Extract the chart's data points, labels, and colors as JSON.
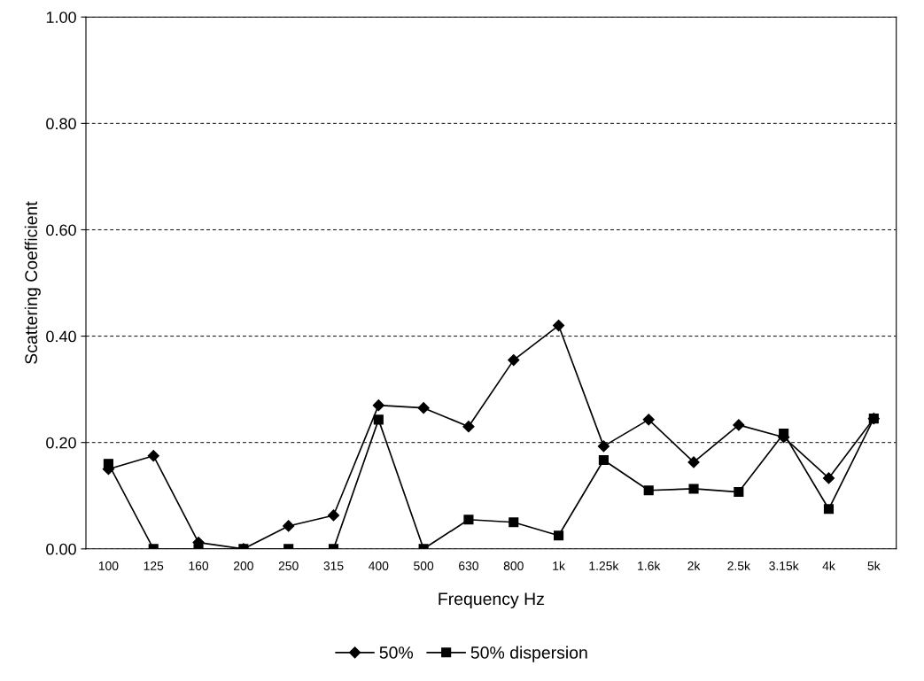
{
  "chart_data": {
    "type": "line",
    "xlabel": "Frequency Hz",
    "ylabel": "Scattering Coefficient",
    "categories": [
      "100",
      "125",
      "160",
      "200",
      "250",
      "315",
      "400",
      "500",
      "630",
      "800",
      "1k",
      "1.25k",
      "1.6k",
      "2k",
      "2.5k",
      "3.15k",
      "4k",
      "5k"
    ],
    "series": [
      {
        "name": "50%",
        "color": "#000000",
        "marker": "diamond",
        "values": [
          0.15,
          0.175,
          0.012,
          0.0,
          0.043,
          0.063,
          0.27,
          0.265,
          0.23,
          0.355,
          0.42,
          0.193,
          0.243,
          0.163,
          0.233,
          0.21,
          0.133,
          0.245
        ]
      },
      {
        "name": "50% dispersion",
        "color": "#000000",
        "marker": "square",
        "values": [
          0.16,
          0.0,
          0.0,
          0.0,
          0.0,
          0.0,
          0.243,
          0.0,
          0.055,
          0.05,
          0.025,
          0.167,
          0.11,
          0.113,
          0.107,
          0.217,
          0.075,
          0.245
        ]
      }
    ],
    "ylim": [
      0,
      1
    ],
    "yticks": [
      {
        "value": 0,
        "label": "0.00"
      },
      {
        "value": 0.2,
        "label": "0.20"
      },
      {
        "value": 0.4,
        "label": "0.40"
      },
      {
        "value": 0.6,
        "label": "0.60"
      },
      {
        "value": 0.8,
        "label": "0.80"
      },
      {
        "value": 1,
        "label": "1.00"
      }
    ],
    "grid": "y",
    "legend": "bottom",
    "line_style": "solid"
  }
}
